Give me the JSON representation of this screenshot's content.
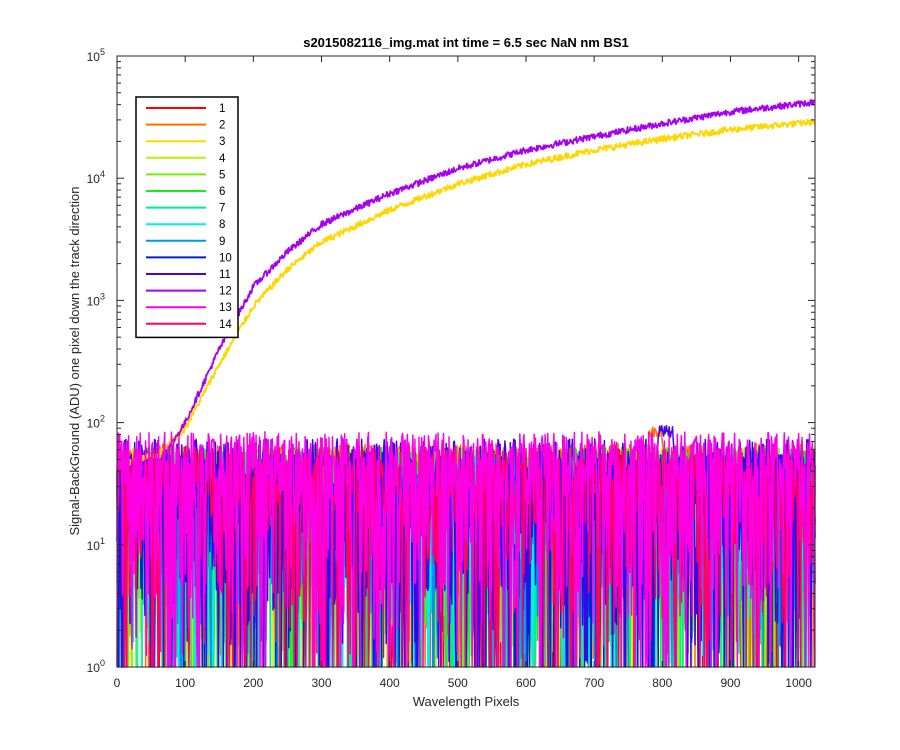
{
  "chart_data": {
    "type": "line",
    "title": "s2015082116_img.mat int time = 6.5 sec  NaN nm BS1",
    "xlabel": "Wavelength Pixels",
    "ylabel": "Signal-BackGround (ADU) one pixel down the track direction",
    "xlim": [
      0,
      1024
    ],
    "ylim": [
      1,
      100000
    ],
    "yscale": "log",
    "x_ticks": [
      "0",
      "100",
      "200",
      "300",
      "400",
      "500",
      "600",
      "700",
      "800",
      "900",
      "1000"
    ],
    "x_tick_values": [
      0,
      100,
      200,
      300,
      400,
      500,
      600,
      700,
      800,
      900,
      1000
    ],
    "y_ticks": [
      {
        "base": "10",
        "exp": "0",
        "value": 1
      },
      {
        "base": "10",
        "exp": "1",
        "value": 10
      },
      {
        "base": "10",
        "exp": "2",
        "value": 100
      },
      {
        "base": "10",
        "exp": "3",
        "value": 1000
      },
      {
        "base": "10",
        "exp": "4",
        "value": 10000
      },
      {
        "base": "10",
        "exp": "5",
        "value": 100000
      }
    ],
    "grid": false,
    "legend_position": "top-left",
    "series": [
      {
        "name": "1",
        "color": "#ff0000",
        "kind": "noise",
        "level": 30
      },
      {
        "name": "2",
        "color": "#ff6f00",
        "kind": "noise",
        "level": 32,
        "peak": {
          "x": 790,
          "value": 250
        }
      },
      {
        "name": "3",
        "color": "#ffd700",
        "kind": "signal",
        "points": [
          [
            0,
            45
          ],
          [
            60,
            55
          ],
          [
            100,
            90
          ],
          [
            150,
            300
          ],
          [
            200,
            900
          ],
          [
            250,
            1800
          ],
          [
            300,
            3000
          ],
          [
            400,
            5500
          ],
          [
            500,
            9000
          ],
          [
            600,
            13000
          ],
          [
            700,
            17000
          ],
          [
            800,
            21000
          ],
          [
            900,
            25000
          ],
          [
            1024,
            29000
          ]
        ]
      },
      {
        "name": "4",
        "color": "#c4ee00",
        "kind": "noise",
        "level": 30
      },
      {
        "name": "5",
        "color": "#74f000",
        "kind": "noise",
        "level": 30
      },
      {
        "name": "6",
        "color": "#17ee17",
        "kind": "noise",
        "level": 30
      },
      {
        "name": "7",
        "color": "#00ee88",
        "kind": "noise",
        "level": 28
      },
      {
        "name": "8",
        "color": "#00eeee",
        "kind": "noise",
        "level": 25
      },
      {
        "name": "9",
        "color": "#0096e6",
        "kind": "noise",
        "level": 22
      },
      {
        "name": "10",
        "color": "#0022dd",
        "kind": "noise",
        "level": 28
      },
      {
        "name": "11",
        "color": "#4400ee",
        "kind": "noise",
        "level": 35,
        "peak": {
          "x": 805,
          "value": 320
        }
      },
      {
        "name": "12",
        "color": "#a800ee",
        "kind": "signal",
        "points": [
          [
            0,
            40
          ],
          [
            60,
            45
          ],
          [
            100,
            100
          ],
          [
            150,
            400
          ],
          [
            200,
            1300
          ],
          [
            250,
            2500
          ],
          [
            300,
            4200
          ],
          [
            400,
            7500
          ],
          [
            500,
            12000
          ],
          [
            600,
            17000
          ],
          [
            700,
            22000
          ],
          [
            800,
            28000
          ],
          [
            900,
            35000
          ],
          [
            1024,
            42000
          ]
        ]
      },
      {
        "name": "13",
        "color": "#ff00e6",
        "kind": "noise",
        "level": 40
      },
      {
        "name": "14",
        "color": "#ff0066",
        "kind": "noise",
        "level": 30
      }
    ]
  }
}
